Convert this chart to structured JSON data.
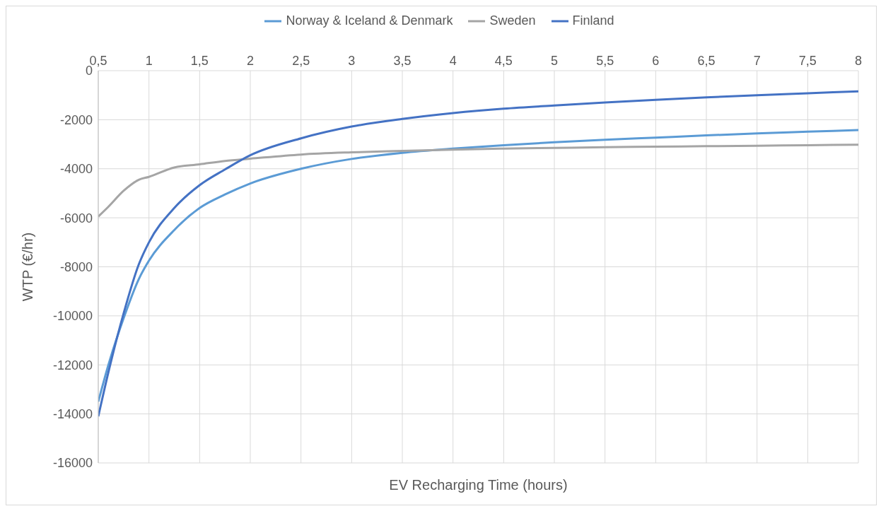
{
  "chart_data": {
    "type": "line",
    "xlabel": "EV Recharging Time (hours)",
    "ylabel": "WTP (€/hr)",
    "x": [
      0.5,
      0.6,
      0.75,
      0.9,
      1,
      1.25,
      1.5,
      1.75,
      2,
      2.5,
      3,
      3.5,
      4,
      4.5,
      5,
      5.5,
      6,
      6.5,
      7,
      7.5,
      8
    ],
    "series": [
      {
        "name": "Norway & Iceland & Denmark",
        "color": "#5b9bd5",
        "values": [
          -13500,
          -12000,
          -10100,
          -8500,
          -7750,
          -6500,
          -5600,
          -5050,
          -4600,
          -4000,
          -3600,
          -3350,
          -3180,
          -3040,
          -2920,
          -2820,
          -2730,
          -2640,
          -2560,
          -2490,
          -2420
        ]
      },
      {
        "name": "Sweden",
        "color": "#a5a5a5",
        "values": [
          -5950,
          -5550,
          -4900,
          -4450,
          -4330,
          -3950,
          -3820,
          -3680,
          -3590,
          -3420,
          -3330,
          -3270,
          -3220,
          -3180,
          -3150,
          -3120,
          -3100,
          -3080,
          -3060,
          -3040,
          -3020
        ]
      },
      {
        "name": "Finland",
        "color": "#4472c4",
        "values": [
          -14100,
          -12300,
          -9900,
          -7900,
          -7000,
          -5600,
          -4670,
          -4030,
          -3450,
          -2760,
          -2280,
          -1970,
          -1730,
          -1550,
          -1420,
          -1300,
          -1190,
          -1090,
          -1000,
          -920,
          -840
        ]
      }
    ],
    "xlim": [
      0.5,
      8
    ],
    "xticks": [
      {
        "value": 0.5,
        "label": "0,5"
      },
      1,
      {
        "value": 1.5,
        "label": "1,5"
      },
      2,
      {
        "value": 2.5,
        "label": "2,5"
      },
      3,
      {
        "value": 3.5,
        "label": "3,5"
      },
      4,
      {
        "value": 4.5,
        "label": "4,5"
      },
      5,
      {
        "value": 5.5,
        "label": "5,5"
      },
      6,
      {
        "value": 6.5,
        "label": "6,5"
      },
      7,
      {
        "value": 7.5,
        "label": "7,5"
      },
      8
    ],
    "ylim": [
      -16000,
      0
    ],
    "yticks": [
      0,
      -2000,
      -4000,
      -6000,
      -8000,
      -10000,
      -12000,
      -14000,
      -16000
    ],
    "grid": true,
    "legend": "top",
    "marker": "none",
    "line_style": "solid"
  }
}
